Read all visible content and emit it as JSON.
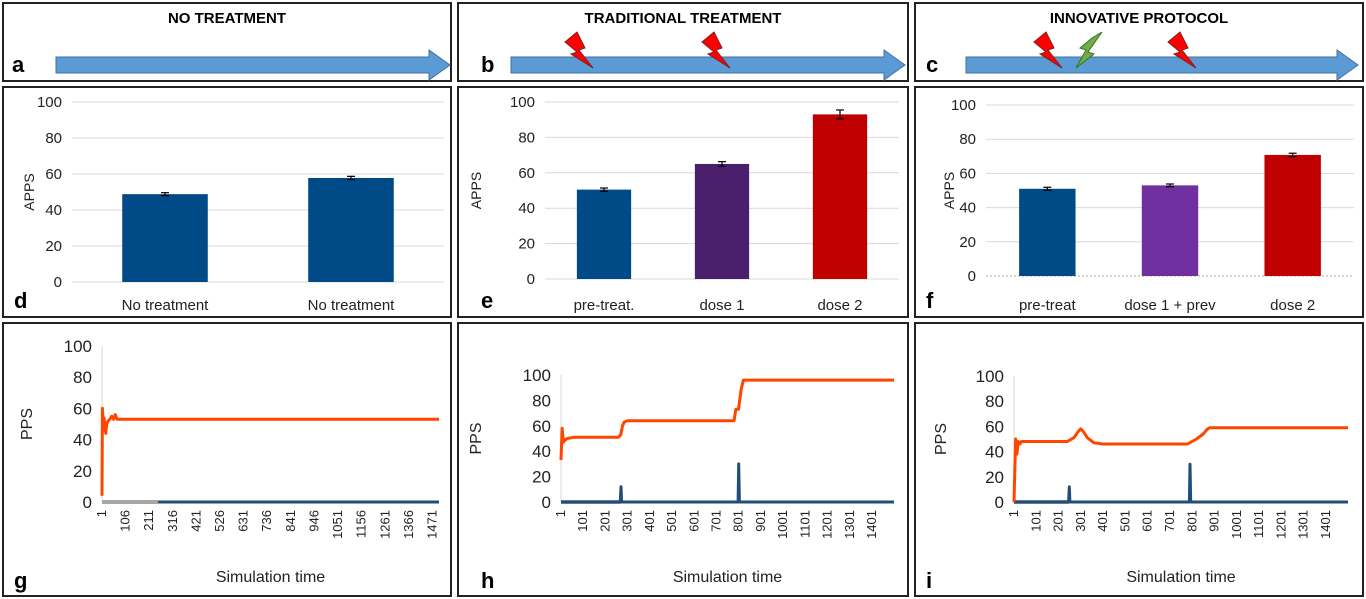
{
  "headers": {
    "a": "NO TREATMENT",
    "b": "TRADITIONAL TREATMENT",
    "c": "INNOVATIVE PROTOCOL"
  },
  "panel_labels": [
    "a",
    "b",
    "c",
    "d",
    "e",
    "f",
    "g",
    "h",
    "i"
  ],
  "colors": {
    "arrow": "#5b9bd5",
    "bar_blue": "#004a87",
    "bar_purple_dark": "#4a1f6b",
    "bar_purple": "#7030a0",
    "bar_red": "#c00000",
    "line_orange": "#ff4500",
    "line_blue": "#1f4e79",
    "line_gray": "#a6a6a6",
    "bolt_red": "#ff0000",
    "bolt_green": "#70ad47"
  },
  "timeline": {
    "b": {
      "bolts": [
        "red",
        "red"
      ]
    },
    "c": {
      "bolts": [
        "red",
        "green",
        "red"
      ]
    }
  },
  "chart_data": [
    {
      "id": "d",
      "type": "bar",
      "ylabel": "APPS",
      "xlabel": "",
      "ylim": [
        0,
        100
      ],
      "yticks": [
        "0",
        "20",
        "40",
        "60",
        "80",
        "100"
      ],
      "categories": [
        "No treatment",
        "No treatment"
      ],
      "values": [
        48.8,
        57.8
      ],
      "errors": [
        0.8,
        0.9
      ],
      "colors": [
        "#004a87",
        "#004a87"
      ],
      "grid": true
    },
    {
      "id": "e",
      "type": "bar",
      "ylabel": "APPS",
      "xlabel": "",
      "ylim": [
        0,
        100
      ],
      "yticks": [
        "0",
        "20",
        "40",
        "60",
        "80",
        "100"
      ],
      "categories": [
        "pre-treat.",
        "dose 1",
        "dose 2"
      ],
      "values": [
        50.5,
        65.0,
        93.0
      ],
      "errors": [
        0.9,
        1.3,
        2.5
      ],
      "colors": [
        "#004a87",
        "#4a1f6b",
        "#c00000"
      ],
      "grid": true
    },
    {
      "id": "f",
      "type": "bar",
      "ylabel": "APPS",
      "xlabel": "",
      "ylim": [
        0,
        100
      ],
      "yticks": [
        "0",
        "20",
        "40",
        "60",
        "80",
        "100"
      ],
      "categories": [
        "pre-treat",
        "dose 1 + prev",
        "dose 2"
      ],
      "values": [
        51.0,
        53.0,
        70.8
      ],
      "errors": [
        0.9,
        0.8,
        1.0
      ],
      "colors": [
        "#004a87",
        "#7030a0",
        "#c00000"
      ],
      "grid": true
    },
    {
      "id": "g",
      "type": "line",
      "ylabel": "PPS",
      "xlabel": "Simulation time",
      "ylim": [
        0,
        100
      ],
      "yticks": [
        "0",
        "20",
        "40",
        "60",
        "80",
        "100"
      ],
      "xticks": [
        "1",
        "106",
        "211",
        "316",
        "421",
        "526",
        "631",
        "736",
        "841",
        "946",
        "1051",
        "1156",
        "1261",
        "1366",
        "1471"
      ],
      "xlim": [
        1,
        1500
      ],
      "series": [
        {
          "color": "orange",
          "points": [
            [
              1,
              4
            ],
            [
              3,
              60
            ],
            [
              6,
              52
            ],
            [
              10,
              54
            ],
            [
              14,
              48
            ],
            [
              18,
              44
            ],
            [
              22,
              50
            ],
            [
              28,
              52
            ],
            [
              36,
              53
            ],
            [
              44,
              55
            ],
            [
              52,
              53
            ],
            [
              60,
              56
            ],
            [
              68,
              53
            ],
            [
              80,
              53
            ],
            [
              1500,
              53
            ]
          ]
        },
        {
          "color": "blue",
          "points": [
            [
              250,
              0
            ],
            [
              1500,
              0
            ]
          ]
        },
        {
          "color": "gray",
          "points": [
            [
              1,
              0
            ],
            [
              250,
              0
            ]
          ]
        }
      ]
    },
    {
      "id": "h",
      "type": "line",
      "ylabel": "PPS",
      "xlabel": "Simulation time",
      "ylim": [
        0,
        100
      ],
      "yticks": [
        "0",
        "20",
        "40",
        "60",
        "80",
        "100"
      ],
      "xticks": [
        "1",
        "101",
        "201",
        "301",
        "401",
        "501",
        "601",
        "701",
        "801",
        "901",
        "1001",
        "1101",
        "1201",
        "1301",
        "1401"
      ],
      "xlim": [
        1,
        1500
      ],
      "series": [
        {
          "color": "orange",
          "points": [
            [
              1,
              33
            ],
            [
              6,
              58
            ],
            [
              12,
              47
            ],
            [
              20,
              49
            ],
            [
              30,
              50
            ],
            [
              60,
              51
            ],
            [
              120,
              51
            ],
            [
              200,
              51
            ],
            [
              260,
              51
            ],
            [
              270,
              53
            ],
            [
              278,
              60
            ],
            [
              286,
              63
            ],
            [
              300,
              64
            ],
            [
              400,
              64
            ],
            [
              600,
              64
            ],
            [
              780,
              64
            ],
            [
              788,
              73
            ],
            [
              800,
              73
            ],
            [
              812,
              89
            ],
            [
              822,
              96
            ],
            [
              1500,
              96
            ]
          ]
        },
        {
          "color": "blue",
          "points": [
            [
              1,
              0
            ],
            [
              268,
              0
            ],
            [
              271,
              12
            ],
            [
              274,
              0
            ],
            [
              798,
              0
            ],
            [
              801,
              30
            ],
            [
              804,
              0
            ],
            [
              1500,
              0
            ]
          ]
        },
        {
          "color": "gray",
          "points": [
            [
              1,
              0
            ],
            [
              268,
              0
            ]
          ]
        }
      ]
    },
    {
      "id": "i",
      "type": "line",
      "ylabel": "PPS",
      "xlabel": "Simulation time",
      "ylim": [
        0,
        100
      ],
      "yticks": [
        "0",
        "20",
        "40",
        "60",
        "80",
        "100"
      ],
      "xticks": [
        "1",
        "101",
        "201",
        "301",
        "401",
        "501",
        "601",
        "701",
        "801",
        "901",
        "1001",
        "1101",
        "1201",
        "1301",
        "1401"
      ],
      "xlim": [
        1,
        1500
      ],
      "series": [
        {
          "color": "orange",
          "points": [
            [
              1,
              0
            ],
            [
              8,
              50
            ],
            [
              14,
              38
            ],
            [
              20,
              48
            ],
            [
              28,
              46
            ],
            [
              34,
              48
            ],
            [
              60,
              48
            ],
            [
              240,
              48
            ],
            [
              270,
              51
            ],
            [
              290,
              56
            ],
            [
              300,
              58
            ],
            [
              312,
              56
            ],
            [
              330,
              51
            ],
            [
              360,
              47
            ],
            [
              400,
              46
            ],
            [
              600,
              46
            ],
            [
              780,
              46
            ],
            [
              820,
              50
            ],
            [
              850,
              54
            ],
            [
              870,
              58
            ],
            [
              880,
              59
            ],
            [
              1500,
              59
            ]
          ]
        },
        {
          "color": "blue",
          "points": [
            [
              1,
              0
            ],
            [
              246,
              0
            ],
            [
              249,
              12
            ],
            [
              252,
              0
            ],
            [
              788,
              0
            ],
            [
              791,
              30
            ],
            [
              794,
              0
            ],
            [
              1500,
              0
            ]
          ]
        },
        {
          "color": "gray",
          "points": [
            [
              1,
              0
            ],
            [
              246,
              0
            ]
          ]
        }
      ]
    }
  ]
}
